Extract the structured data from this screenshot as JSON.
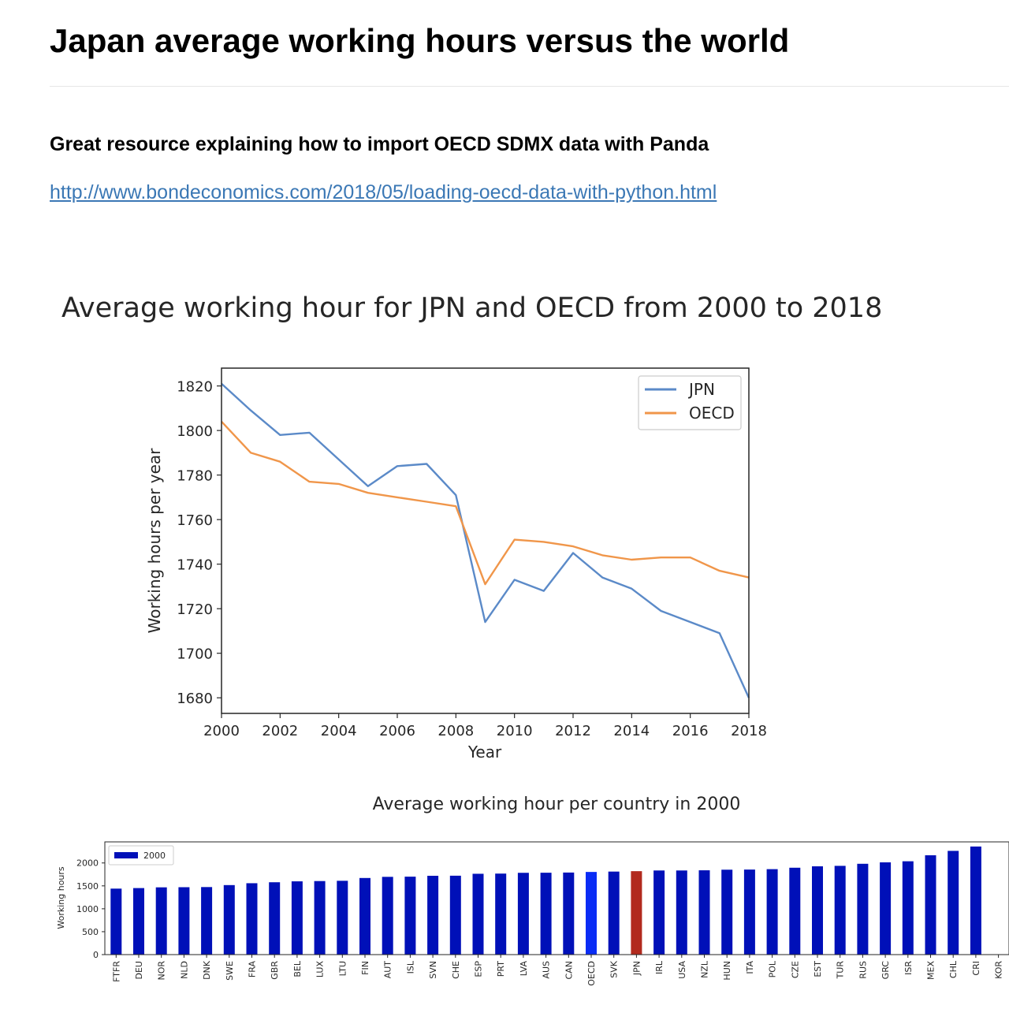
{
  "page": {
    "title": "Japan average working hours versus the world",
    "subheading": "Great resource explaining how to import OECD SDMX data with Panda",
    "link_text": "http://www.bondeconomics.com/2018/05/loading-oecd-data-with-python.html"
  },
  "colors": {
    "link": "#3b78b5",
    "jpn_line": "#5b8ac8",
    "oecd_line": "#f0964a",
    "bar_default": "#0010b8",
    "bar_oecd": "#0a2cf5",
    "bar_jpn": "#b22a1e"
  },
  "chart_data": [
    {
      "type": "line",
      "title": "Average working hour for JPN and OECD from 2000 to 2018",
      "xlabel": "Year",
      "ylabel": "Working hours per year",
      "x": [
        2000,
        2001,
        2002,
        2003,
        2004,
        2005,
        2006,
        2007,
        2008,
        2009,
        2010,
        2011,
        2012,
        2013,
        2014,
        2015,
        2016,
        2017,
        2018
      ],
      "series": [
        {
          "name": "JPN",
          "values": [
            1821,
            1809,
            1798,
            1799,
            1787,
            1775,
            1784,
            1785,
            1771,
            1714,
            1733,
            1728,
            1745,
            1734,
            1729,
            1719,
            1714,
            1709,
            1680
          ]
        },
        {
          "name": "OECD",
          "values": [
            1804,
            1790,
            1786,
            1777,
            1776,
            1772,
            1770,
            1768,
            1766,
            1731,
            1751,
            1750,
            1748,
            1744,
            1742,
            1743,
            1743,
            1737,
            1734
          ]
        }
      ],
      "xlim": [
        2000,
        2018
      ],
      "ylim": [
        1673,
        1828
      ],
      "xticks": [
        2000,
        2002,
        2004,
        2006,
        2008,
        2010,
        2012,
        2014,
        2016,
        2018
      ],
      "yticks": [
        1680,
        1700,
        1720,
        1740,
        1760,
        1780,
        1800,
        1820
      ],
      "legend": "top-right",
      "grid": false
    },
    {
      "type": "bar",
      "title": "Average working hour per country in 2000",
      "ylabel": "Working hours",
      "categories": [
        "FTFR",
        "DEU",
        "NOR",
        "NLD",
        "DNK",
        "SWE",
        "FRA",
        "GBR",
        "BEL",
        "LUX",
        "LTU",
        "FIN",
        "AUT",
        "ISL",
        "SVN",
        "CHE",
        "ESP",
        "PRT",
        "LVA",
        "AUS",
        "CAN",
        "OECD",
        "SVK",
        "JPN",
        "IRL",
        "USA",
        "NZL",
        "HUN",
        "ITA",
        "POL",
        "CZE",
        "EST",
        "TUR",
        "RUS",
        "GRC",
        "ISR",
        "MEX",
        "CHL",
        "CRI",
        "KOR"
      ],
      "series": [
        {
          "name": "2000",
          "values": [
            1440,
            1452,
            1468,
            1471,
            1474,
            1517,
            1558,
            1579,
            1599,
            1605,
            1611,
            1672,
            1697,
            1701,
            1720,
            1722,
            1764,
            1768,
            1785,
            1787,
            1791,
            1804,
            1812,
            1821,
            1836,
            1836,
            1840,
            1853,
            1856,
            1865,
            1896,
            1927,
            1937,
            1982,
            2014,
            2037,
            2168,
            2264,
            2359,
            0
          ]
        }
      ],
      "highlight": {
        "OECD": "bar_oecd",
        "JPN": "bar_jpn"
      },
      "yticks": [
        0,
        500,
        1000,
        1500,
        2000
      ],
      "ylim": [
        0,
        2460
      ],
      "legend": "top-left",
      "grid": false
    }
  ]
}
